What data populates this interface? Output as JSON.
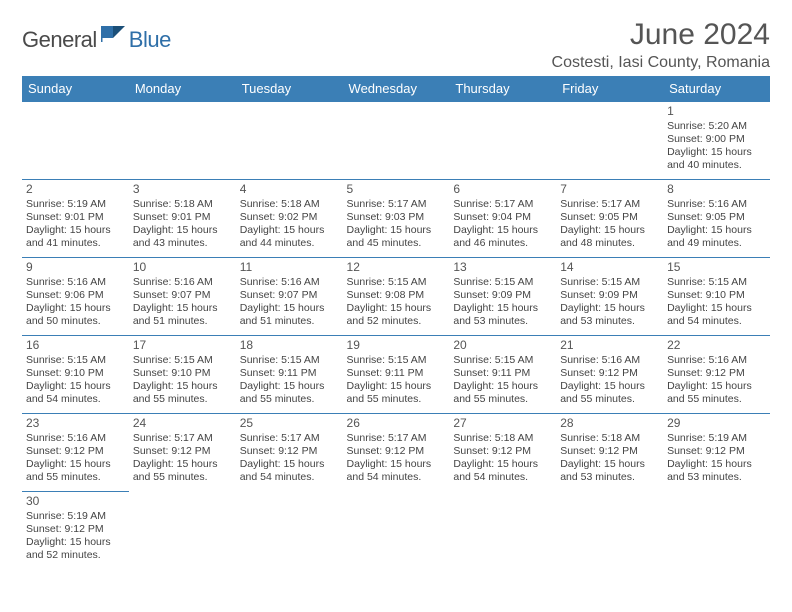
{
  "logo": {
    "general": "General",
    "blue": "Blue"
  },
  "title": "June 2024",
  "location": "Costesti, Iasi County, Romania",
  "colors": {
    "header_bg": "#3b7fb6",
    "header_text": "#ffffff",
    "logo_blue": "#2f6fa8"
  },
  "day_headers": [
    "Sunday",
    "Monday",
    "Tuesday",
    "Wednesday",
    "Thursday",
    "Friday",
    "Saturday"
  ],
  "weeks": [
    [
      null,
      null,
      null,
      null,
      null,
      null,
      {
        "n": "1",
        "sr": "5:20 AM",
        "ss": "9:00 PM",
        "dl": "15 hours and 40 minutes."
      }
    ],
    [
      {
        "n": "2",
        "sr": "5:19 AM",
        "ss": "9:01 PM",
        "dl": "15 hours and 41 minutes."
      },
      {
        "n": "3",
        "sr": "5:18 AM",
        "ss": "9:01 PM",
        "dl": "15 hours and 43 minutes."
      },
      {
        "n": "4",
        "sr": "5:18 AM",
        "ss": "9:02 PM",
        "dl": "15 hours and 44 minutes."
      },
      {
        "n": "5",
        "sr": "5:17 AM",
        "ss": "9:03 PM",
        "dl": "15 hours and 45 minutes."
      },
      {
        "n": "6",
        "sr": "5:17 AM",
        "ss": "9:04 PM",
        "dl": "15 hours and 46 minutes."
      },
      {
        "n": "7",
        "sr": "5:17 AM",
        "ss": "9:05 PM",
        "dl": "15 hours and 48 minutes."
      },
      {
        "n": "8",
        "sr": "5:16 AM",
        "ss": "9:05 PM",
        "dl": "15 hours and 49 minutes."
      }
    ],
    [
      {
        "n": "9",
        "sr": "5:16 AM",
        "ss": "9:06 PM",
        "dl": "15 hours and 50 minutes."
      },
      {
        "n": "10",
        "sr": "5:16 AM",
        "ss": "9:07 PM",
        "dl": "15 hours and 51 minutes."
      },
      {
        "n": "11",
        "sr": "5:16 AM",
        "ss": "9:07 PM",
        "dl": "15 hours and 51 minutes."
      },
      {
        "n": "12",
        "sr": "5:15 AM",
        "ss": "9:08 PM",
        "dl": "15 hours and 52 minutes."
      },
      {
        "n": "13",
        "sr": "5:15 AM",
        "ss": "9:09 PM",
        "dl": "15 hours and 53 minutes."
      },
      {
        "n": "14",
        "sr": "5:15 AM",
        "ss": "9:09 PM",
        "dl": "15 hours and 53 minutes."
      },
      {
        "n": "15",
        "sr": "5:15 AM",
        "ss": "9:10 PM",
        "dl": "15 hours and 54 minutes."
      }
    ],
    [
      {
        "n": "16",
        "sr": "5:15 AM",
        "ss": "9:10 PM",
        "dl": "15 hours and 54 minutes."
      },
      {
        "n": "17",
        "sr": "5:15 AM",
        "ss": "9:10 PM",
        "dl": "15 hours and 55 minutes."
      },
      {
        "n": "18",
        "sr": "5:15 AM",
        "ss": "9:11 PM",
        "dl": "15 hours and 55 minutes."
      },
      {
        "n": "19",
        "sr": "5:15 AM",
        "ss": "9:11 PM",
        "dl": "15 hours and 55 minutes."
      },
      {
        "n": "20",
        "sr": "5:15 AM",
        "ss": "9:11 PM",
        "dl": "15 hours and 55 minutes."
      },
      {
        "n": "21",
        "sr": "5:16 AM",
        "ss": "9:12 PM",
        "dl": "15 hours and 55 minutes."
      },
      {
        "n": "22",
        "sr": "5:16 AM",
        "ss": "9:12 PM",
        "dl": "15 hours and 55 minutes."
      }
    ],
    [
      {
        "n": "23",
        "sr": "5:16 AM",
        "ss": "9:12 PM",
        "dl": "15 hours and 55 minutes."
      },
      {
        "n": "24",
        "sr": "5:17 AM",
        "ss": "9:12 PM",
        "dl": "15 hours and 55 minutes."
      },
      {
        "n": "25",
        "sr": "5:17 AM",
        "ss": "9:12 PM",
        "dl": "15 hours and 54 minutes."
      },
      {
        "n": "26",
        "sr": "5:17 AM",
        "ss": "9:12 PM",
        "dl": "15 hours and 54 minutes."
      },
      {
        "n": "27",
        "sr": "5:18 AM",
        "ss": "9:12 PM",
        "dl": "15 hours and 54 minutes."
      },
      {
        "n": "28",
        "sr": "5:18 AM",
        "ss": "9:12 PM",
        "dl": "15 hours and 53 minutes."
      },
      {
        "n": "29",
        "sr": "5:19 AM",
        "ss": "9:12 PM",
        "dl": "15 hours and 53 minutes."
      }
    ],
    [
      {
        "n": "30",
        "sr": "5:19 AM",
        "ss": "9:12 PM",
        "dl": "15 hours and 52 minutes."
      },
      null,
      null,
      null,
      null,
      null,
      null
    ]
  ],
  "labels": {
    "sunrise": "Sunrise:",
    "sunset": "Sunset:",
    "daylight": "Daylight:"
  }
}
